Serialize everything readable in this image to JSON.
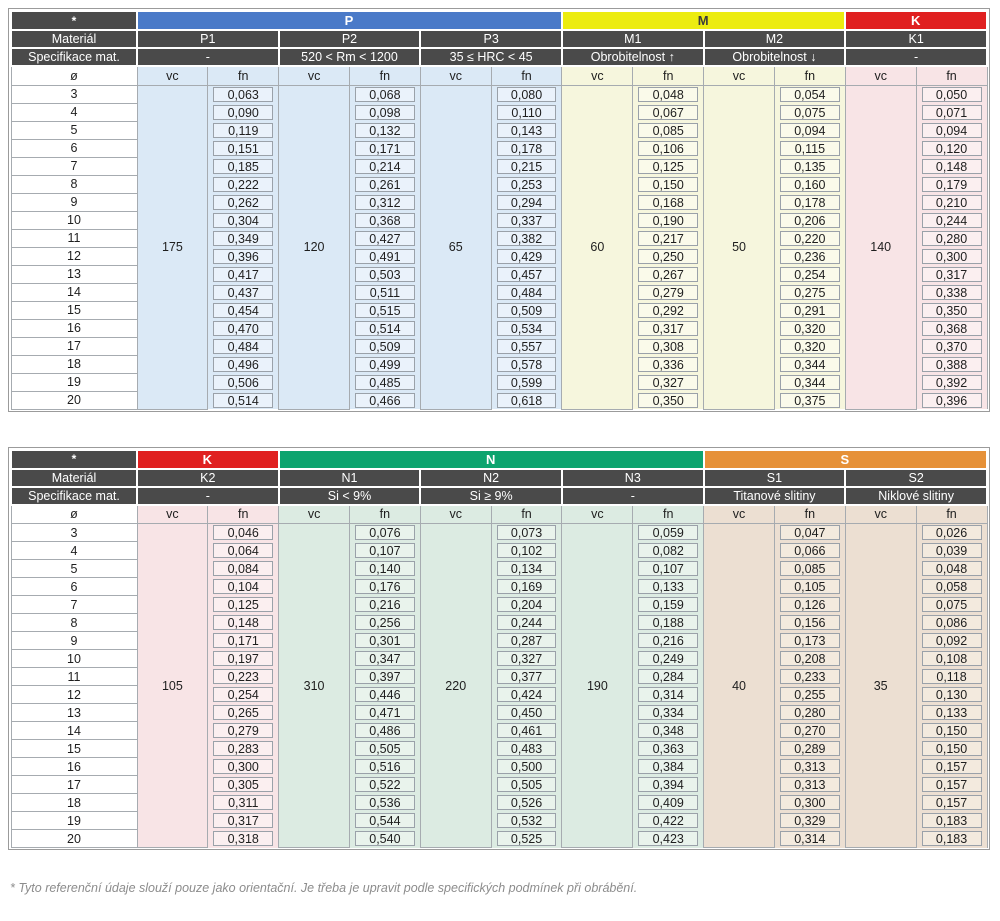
{
  "labels": {
    "star": "*",
    "material_row": "Materiál",
    "spec_row": "Specifikace mat.",
    "diameter_symbol": "ø",
    "vc": "vc",
    "fn": "fn"
  },
  "diameters": [
    "3",
    "4",
    "5",
    "6",
    "7",
    "8",
    "9",
    "10",
    "11",
    "12",
    "13",
    "14",
    "15",
    "16",
    "17",
    "18",
    "19",
    "20"
  ],
  "footnote": "* Tyto referenční údaje slouží pouze jako orientační. Je třeba je upravit podle specifických podmínek při obrábění.",
  "colors": {
    "header_dark": "#4a4a4a",
    "grid": "#a6abb0"
  },
  "tables": [
    {
      "groups": [
        {
          "label": "P",
          "band_color": "#4a7ac8",
          "band_text": "#ffffff",
          "tint": "#dbe9f6",
          "box": "#eaf2fb",
          "columns": [
            {
              "material": "P1",
              "spec": "-",
              "vc": "175",
              "fn": [
                "0,063",
                "0,090",
                "0,119",
                "0,151",
                "0,185",
                "0,222",
                "0,262",
                "0,304",
                "0,349",
                "0,396",
                "0,417",
                "0,437",
                "0,454",
                "0,470",
                "0,484",
                "0,496",
                "0,506",
                "0,514"
              ]
            },
            {
              "material": "P2",
              "spec": "520 < Rm < 1200",
              "vc": "120",
              "fn": [
                "0,068",
                "0,098",
                "0,132",
                "0,171",
                "0,214",
                "0,261",
                "0,312",
                "0,368",
                "0,427",
                "0,491",
                "0,503",
                "0,511",
                "0,515",
                "0,514",
                "0,509",
                "0,499",
                "0,485",
                "0,466"
              ]
            },
            {
              "material": "P3",
              "spec": "35 ≤ HRC < 45",
              "vc": "65",
              "fn": [
                "0,080",
                "0,110",
                "0,143",
                "0,178",
                "0,215",
                "0,253",
                "0,294",
                "0,337",
                "0,382",
                "0,429",
                "0,457",
                "0,484",
                "0,509",
                "0,534",
                "0,557",
                "0,578",
                "0,599",
                "0,618"
              ]
            }
          ]
        },
        {
          "label": "M",
          "band_color": "#ecec10",
          "band_text": "#3c3c3c",
          "tint": "#f6f6dd",
          "box": "#fafaea",
          "columns": [
            {
              "material": "M1",
              "spec": "Obrobitelnost ↑",
              "vc": "60",
              "fn": [
                "0,048",
                "0,067",
                "0,085",
                "0,106",
                "0,125",
                "0,150",
                "0,168",
                "0,190",
                "0,217",
                "0,250",
                "0,267",
                "0,279",
                "0,292",
                "0,317",
                "0,308",
                "0,336",
                "0,327",
                "0,350"
              ]
            },
            {
              "material": "M2",
              "spec": "Obrobitelnost ↓",
              "vc": "50",
              "fn": [
                "0,054",
                "0,075",
                "0,094",
                "0,115",
                "0,135",
                "0,160",
                "0,178",
                "0,206",
                "0,220",
                "0,236",
                "0,254",
                "0,275",
                "0,291",
                "0,320",
                "0,320",
                "0,344",
                "0,344",
                "0,375"
              ]
            }
          ]
        },
        {
          "label": "K",
          "band_color": "#e02020",
          "band_text": "#ffffff",
          "tint": "#f8e4e6",
          "box": "#fbeff0",
          "columns": [
            {
              "material": "K1",
              "spec": "-",
              "vc": "140",
              "fn": [
                "0,050",
                "0,071",
                "0,094",
                "0,120",
                "0,148",
                "0,179",
                "0,210",
                "0,244",
                "0,280",
                "0,300",
                "0,317",
                "0,338",
                "0,350",
                "0,368",
                "0,370",
                "0,388",
                "0,392",
                "0,396"
              ]
            }
          ]
        }
      ]
    },
    {
      "groups": [
        {
          "label": "K",
          "band_color": "#e02020",
          "band_text": "#ffffff",
          "tint": "#f8e4e6",
          "box": "#fbeff0",
          "columns": [
            {
              "material": "K2",
              "spec": "-",
              "vc": "105",
              "fn": [
                "0,046",
                "0,064",
                "0,084",
                "0,104",
                "0,125",
                "0,148",
                "0,171",
                "0,197",
                "0,223",
                "0,254",
                "0,265",
                "0,279",
                "0,283",
                "0,300",
                "0,305",
                "0,311",
                "0,317",
                "0,318"
              ]
            }
          ]
        },
        {
          "label": "N",
          "band_color": "#0ca46e",
          "band_text": "#ffffff",
          "tint": "#dcebe2",
          "box": "#e9f3ec",
          "columns": [
            {
              "material": "N1",
              "spec": "Si < 9%",
              "vc": "310",
              "fn": [
                "0,076",
                "0,107",
                "0,140",
                "0,176",
                "0,216",
                "0,256",
                "0,301",
                "0,347",
                "0,397",
                "0,446",
                "0,471",
                "0,486",
                "0,505",
                "0,516",
                "0,522",
                "0,536",
                "0,544",
                "0,540"
              ]
            },
            {
              "material": "N2",
              "spec": "Si ≥ 9%",
              "vc": "220",
              "fn": [
                "0,073",
                "0,102",
                "0,134",
                "0,169",
                "0,204",
                "0,244",
                "0,287",
                "0,327",
                "0,377",
                "0,424",
                "0,450",
                "0,461",
                "0,483",
                "0,500",
                "0,505",
                "0,526",
                "0,532",
                "0,525"
              ]
            },
            {
              "material": "N3",
              "spec": "-",
              "vc": "190",
              "fn": [
                "0,059",
                "0,082",
                "0,107",
                "0,133",
                "0,159",
                "0,188",
                "0,216",
                "0,249",
                "0,284",
                "0,314",
                "0,334",
                "0,348",
                "0,363",
                "0,384",
                "0,394",
                "0,409",
                "0,422",
                "0,423"
              ]
            }
          ]
        },
        {
          "label": "S",
          "band_color": "#e69138",
          "band_text": "#ffffff",
          "tint": "#ecdfd2",
          "box": "#f3eade",
          "columns": [
            {
              "material": "S1",
              "spec": "Titanové slitiny",
              "vc": "40",
              "fn": [
                "0,047",
                "0,066",
                "0,085",
                "0,105",
                "0,126",
                "0,156",
                "0,173",
                "0,208",
                "0,233",
                "0,255",
                "0,280",
                "0,270",
                "0,289",
                "0,313",
                "0,313",
                "0,300",
                "0,329",
                "0,314"
              ]
            },
            {
              "material": "S2",
              "spec": "Niklové slitiny",
              "vc": "35",
              "fn": [
                "0,026",
                "0,039",
                "0,048",
                "0,058",
                "0,075",
                "0,086",
                "0,092",
                "0,108",
                "0,118",
                "0,130",
                "0,133",
                "0,150",
                "0,150",
                "0,157",
                "0,157",
                "0,157",
                "0,183",
                "0,183"
              ]
            }
          ]
        }
      ]
    }
  ]
}
